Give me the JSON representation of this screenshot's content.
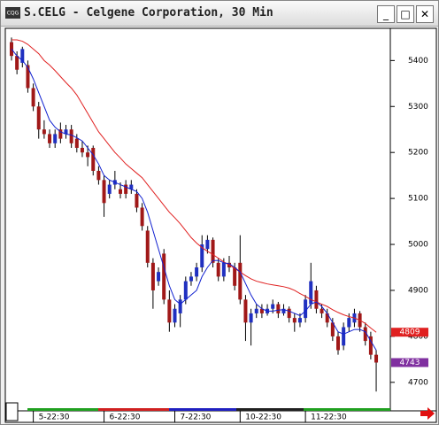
{
  "window_title": "S.CELG - Celgene Corporation, 30 Min",
  "chart_data": {
    "type": "candlestick",
    "categories": [
      null,
      null,
      null,
      null,
      "5-22:30",
      null,
      null,
      null,
      null,
      null,
      null,
      null,
      null,
      null,
      null,
      null,
      null,
      "6-22:30",
      null,
      null,
      null,
      null,
      null,
      null,
      null,
      null,
      null,
      null,
      null,
      null,
      "7-22:30",
      null,
      null,
      null,
      null,
      null,
      null,
      null,
      null,
      null,
      null,
      null,
      "10-22:30",
      null,
      null,
      null,
      null,
      null,
      null,
      null,
      null,
      null,
      null,
      null,
      "11-22:30",
      null,
      null,
      null,
      null,
      null,
      null,
      null,
      null,
      null,
      null,
      null,
      null,
      null
    ],
    "open": [
      5440,
      5410,
      5395,
      5390,
      5340,
      5300,
      5250,
      5240,
      5220,
      5250,
      5240,
      5250,
      5230,
      5210,
      5200,
      5210,
      5160,
      5140,
      5110,
      5130,
      5120,
      5130,
      5120,
      5110,
      5080,
      5030,
      4960,
      4920,
      4980,
      4880,
      4830,
      4850,
      4880,
      4920,
      4930,
      4950,
      4990,
      5010,
      4960,
      4930,
      4960,
      4950,
      4960,
      4880,
      4830,
      4850,
      4860,
      4850,
      4860,
      4870,
      4850,
      4860,
      4840,
      4830,
      4840,
      4870,
      4900,
      4860,
      4850,
      4830,
      4800,
      4780,
      4820,
      4830,
      4850,
      4820,
      4800,
      4760
    ],
    "high": [
      5450,
      5420,
      5430,
      5400,
      5350,
      5310,
      5270,
      5250,
      5250,
      5265,
      5260,
      5260,
      5240,
      5225,
      5215,
      5215,
      5170,
      5150,
      5140,
      5160,
      5135,
      5140,
      5140,
      5120,
      5090,
      5040,
      4970,
      4950,
      4990,
      4900,
      4870,
      4890,
      4930,
      4940,
      4960,
      5020,
      5020,
      5015,
      4970,
      4970,
      4975,
      4960,
      5020,
      4890,
      4860,
      4870,
      4870,
      4870,
      4880,
      4875,
      4870,
      4865,
      4850,
      4850,
      4890,
      4960,
      4910,
      4870,
      4860,
      4840,
      4810,
      4830,
      4850,
      4860,
      4855,
      4830,
      4810,
      4770
    ],
    "low": [
      5400,
      5370,
      5385,
      5330,
      5290,
      5230,
      5230,
      5210,
      5210,
      5220,
      5230,
      5210,
      5200,
      5190,
      5170,
      5150,
      5130,
      5060,
      5100,
      5120,
      5100,
      5100,
      5110,
      5070,
      5030,
      4950,
      4860,
      4910,
      4870,
      4810,
      4820,
      4820,
      4870,
      4910,
      4920,
      4940,
      4980,
      4950,
      4920,
      4920,
      4940,
      4900,
      4870,
      4790,
      4780,
      4840,
      4840,
      4845,
      4850,
      4840,
      4845,
      4830,
      4810,
      4820,
      4830,
      4860,
      4850,
      4840,
      4820,
      4790,
      4760,
      4770,
      4810,
      4820,
      4810,
      4780,
      4750,
      4680
    ],
    "close": [
      5410,
      5380,
      5425,
      5340,
      5300,
      5250,
      5240,
      5220,
      5240,
      5230,
      5250,
      5220,
      5210,
      5200,
      5190,
      5160,
      5140,
      5090,
      5130,
      5140,
      5110,
      5110,
      5130,
      5080,
      5040,
      4960,
      4900,
      4940,
      4880,
      4830,
      4860,
      4880,
      4920,
      4930,
      4950,
      5000,
      5010,
      4960,
      4930,
      4960,
      4950,
      4910,
      4880,
      4830,
      4850,
      4860,
      4850,
      4860,
      4870,
      4850,
      4860,
      4840,
      4830,
      4840,
      4880,
      4920,
      4860,
      4850,
      4830,
      4800,
      4770,
      4820,
      4840,
      4850,
      4820,
      4790,
      4760,
      4743
    ],
    "up_color": "#2030c0",
    "down_color": "#a01818",
    "series": [
      {
        "color": "#e02020",
        "values": [
          5445,
          5445,
          5442,
          5435,
          5425,
          5415,
          5400,
          5390,
          5378,
          5365,
          5352,
          5340,
          5325,
          5305,
          5285,
          5265,
          5245,
          5230,
          5215,
          5200,
          5188,
          5175,
          5165,
          5155,
          5145,
          5130,
          5115,
          5100,
          5085,
          5070,
          5058,
          5045,
          5030,
          5015,
          5003,
          4993,
          4985,
          4978,
          4970,
          4962,
          4955,
          4948,
          4940,
          4932,
          4925,
          4920,
          4917,
          4914,
          4912,
          4910,
          4908,
          4905,
          4900,
          4893,
          4887,
          4880,
          4875,
          4870,
          4865,
          4858,
          4852,
          4847,
          4843,
          4840,
          4835,
          4828,
          4818,
          4809
        ]
      },
      {
        "color": "#1020d0",
        "values": [
          5425,
          5410,
          5400,
          5385,
          5360,
          5330,
          5300,
          5270,
          5255,
          5245,
          5240,
          5238,
          5232,
          5225,
          5210,
          5195,
          5175,
          5150,
          5140,
          5135,
          5130,
          5125,
          5120,
          5115,
          5100,
          5070,
          5030,
          4990,
          4950,
          4910,
          4880,
          4870,
          4880,
          4890,
          4900,
          4930,
          4950,
          4965,
          4965,
          4960,
          4958,
          4950,
          4940,
          4915,
          4890,
          4870,
          4860,
          4855,
          4855,
          4857,
          4858,
          4855,
          4850,
          4845,
          4855,
          4870,
          4875,
          4865,
          4850,
          4830,
          4810,
          4805,
          4810,
          4815,
          4815,
          4810,
          4790,
          4770
        ]
      }
    ],
    "price_markers": [
      {
        "value": 4809,
        "color": "#e02020"
      },
      {
        "value": 4743,
        "color": "#8030a0"
      }
    ],
    "ylim": [
      4638,
      5470
    ],
    "yticks": [
      4700,
      4800,
      4900,
      5000,
      5100,
      5200,
      5300,
      5400
    ]
  }
}
